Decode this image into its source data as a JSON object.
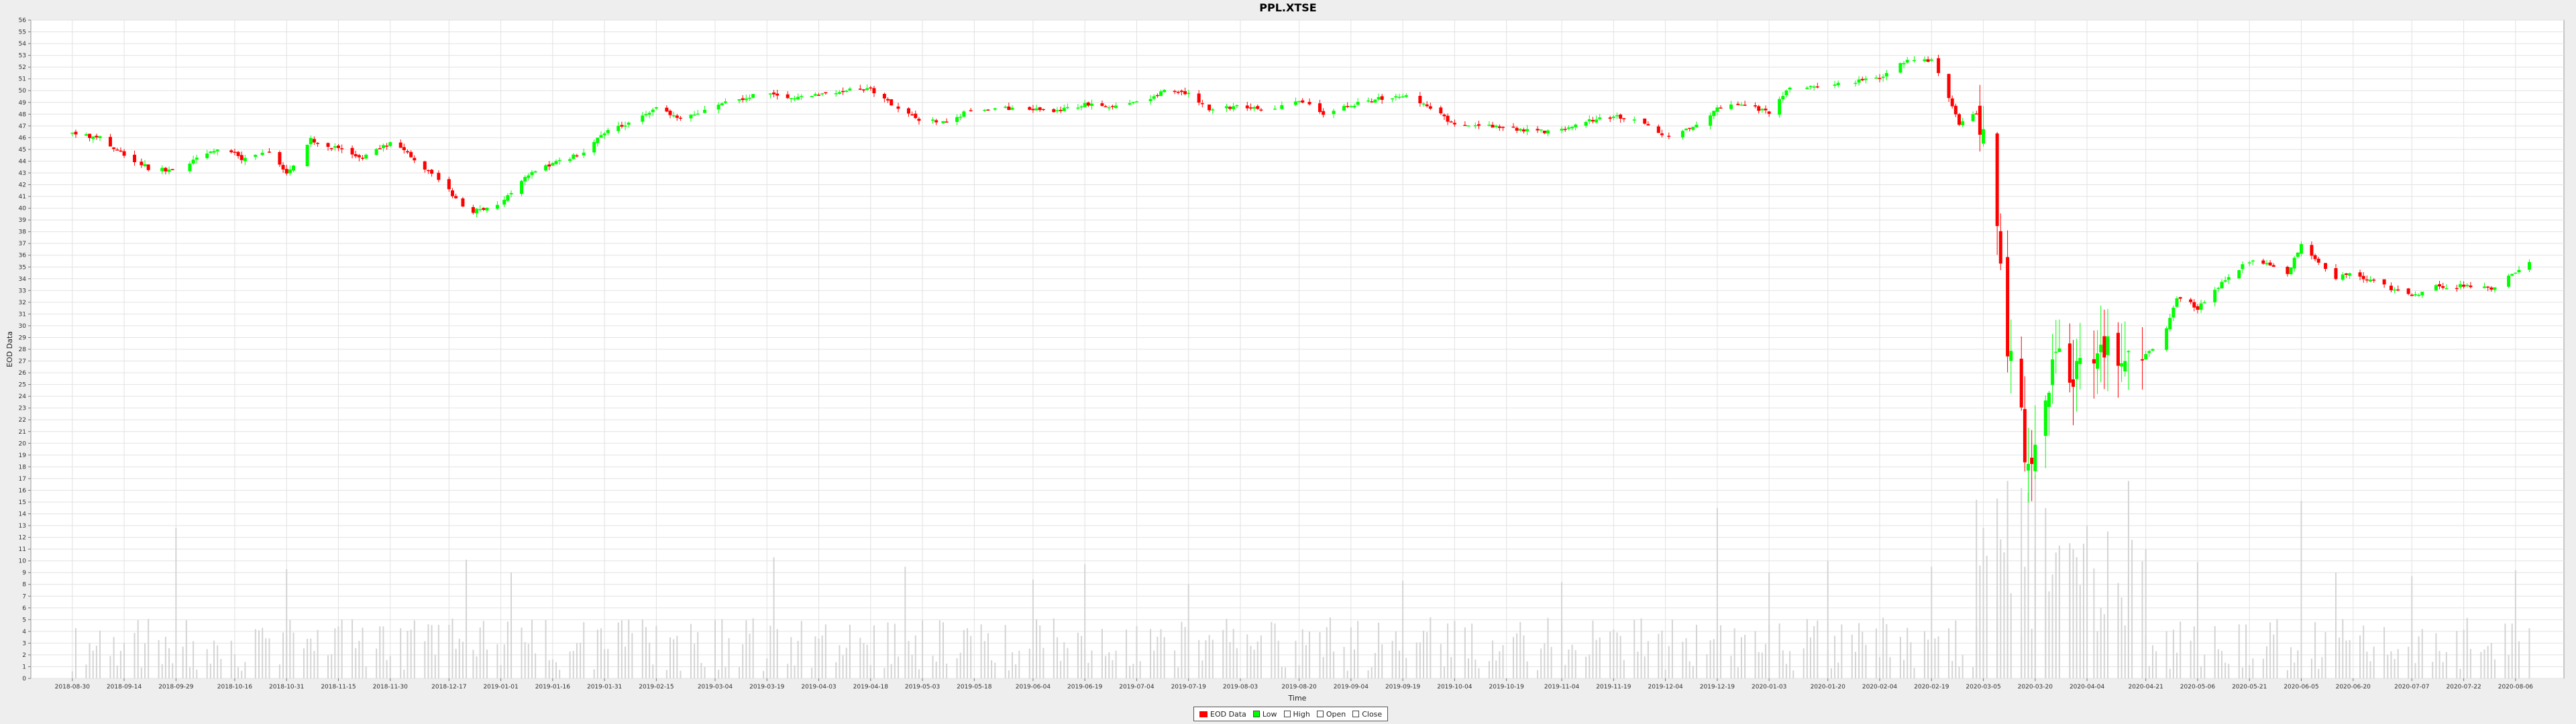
{
  "title": "PPL.XTSE",
  "chart_data": {
    "type": "candlestick",
    "title": "PPL.XTSE",
    "xlabel": "Time",
    "ylabel": "EOD Data",
    "ylim": [
      0,
      56
    ],
    "grid": true,
    "legend_placement": "bottom-center",
    "x_tick_labels": [
      "2018-08-30",
      "2018-09-14",
      "2018-09-29",
      "2018-10-16",
      "2018-10-31",
      "2018-11-15",
      "2018-11-30",
      "2018-12-17",
      "2019-01-01",
      "2019-01-16",
      "2019-01-31",
      "2019-02-15",
      "2019-03-04",
      "2019-03-19",
      "2019-04-03",
      "2019-04-18",
      "2019-05-03",
      "2019-05-18",
      "2019-06-04",
      "2019-06-19",
      "2019-07-04",
      "2019-07-19",
      "2019-08-03",
      "2019-08-20",
      "2019-09-04",
      "2019-09-19",
      "2019-10-04",
      "2019-10-19",
      "2019-11-04",
      "2019-11-19",
      "2019-12-04",
      "2019-12-19",
      "2020-01-03",
      "2020-01-20",
      "2020-02-04",
      "2020-02-19",
      "2020-03-05",
      "2020-03-20",
      "2020-04-04",
      "2020-04-21",
      "2020-05-06",
      "2020-05-21",
      "2020-06-05",
      "2020-06-20",
      "2020-07-07",
      "2020-07-22",
      "2020-08-06"
    ],
    "y_ticks": [
      0,
      1,
      2,
      3,
      4,
      5,
      6,
      7,
      8,
      9,
      10,
      11,
      12,
      13,
      14,
      15,
      16,
      17,
      18,
      19,
      20,
      21,
      22,
      23,
      24,
      25,
      26,
      27,
      28,
      29,
      30,
      31,
      32,
      33,
      34,
      35,
      36,
      37,
      38,
      39,
      40,
      41,
      42,
      43,
      44,
      45,
      46,
      47,
      48,
      49,
      50,
      51,
      52,
      53,
      54,
      55,
      56
    ],
    "close_anchors": [
      [
        "2018-08-30",
        46.3
      ],
      [
        "2018-09-07",
        46.0
      ],
      [
        "2018-09-14",
        44.6
      ],
      [
        "2018-09-21",
        43.4
      ],
      [
        "2018-09-29",
        43.2
      ],
      [
        "2018-10-06",
        44.5
      ],
      [
        "2018-10-13",
        45.3
      ],
      [
        "2018-10-18",
        44.2
      ],
      [
        "2018-10-26",
        44.9
      ],
      [
        "2018-10-31",
        43.0
      ],
      [
        "2018-11-07",
        45.8
      ],
      [
        "2018-11-15",
        45.0
      ],
      [
        "2018-11-22",
        44.3
      ],
      [
        "2018-11-30",
        45.6
      ],
      [
        "2018-12-07",
        44.2
      ],
      [
        "2018-12-17",
        41.5
      ],
      [
        "2018-12-22",
        39.6
      ],
      [
        "2019-01-01",
        40.4
      ],
      [
        "2019-01-08",
        42.8
      ],
      [
        "2019-01-16",
        43.8
      ],
      [
        "2019-01-24",
        44.6
      ],
      [
        "2019-01-31",
        46.5
      ],
      [
        "2019-02-08",
        47.3
      ],
      [
        "2019-02-15",
        48.5
      ],
      [
        "2019-02-22",
        47.6
      ],
      [
        "2019-03-04",
        48.8
      ],
      [
        "2019-03-11",
        49.3
      ],
      [
        "2019-03-19",
        49.8
      ],
      [
        "2019-03-26",
        49.2
      ],
      [
        "2019-04-03",
        49.7
      ],
      [
        "2019-04-11",
        50.0
      ],
      [
        "2019-04-18",
        50.1
      ],
      [
        "2019-04-26",
        48.4
      ],
      [
        "2019-05-03",
        47.4
      ],
      [
        "2019-05-10",
        47.5
      ],
      [
        "2019-05-18",
        48.4
      ],
      [
        "2019-05-26",
        48.5
      ],
      [
        "2019-06-04",
        48.4
      ],
      [
        "2019-06-12",
        48.3
      ],
      [
        "2019-06-19",
        48.8
      ],
      [
        "2019-06-26",
        48.6
      ],
      [
        "2019-07-04",
        49.0
      ],
      [
        "2019-07-12",
        49.9
      ],
      [
        "2019-07-19",
        49.7
      ],
      [
        "2019-07-26",
        48.3
      ],
      [
        "2019-08-03",
        48.7
      ],
      [
        "2019-08-12",
        48.3
      ],
      [
        "2019-08-20",
        49.2
      ],
      [
        "2019-08-27",
        48.0
      ],
      [
        "2019-09-04",
        48.8
      ],
      [
        "2019-09-12",
        49.3
      ],
      [
        "2019-09-19",
        49.6
      ],
      [
        "2019-09-26",
        48.7
      ],
      [
        "2019-10-04",
        47.1
      ],
      [
        "2019-10-12",
        47.0
      ],
      [
        "2019-10-19",
        46.8
      ],
      [
        "2019-10-27",
        46.5
      ],
      [
        "2019-11-04",
        46.6
      ],
      [
        "2019-11-12",
        47.4
      ],
      [
        "2019-11-19",
        47.8
      ],
      [
        "2019-11-27",
        47.4
      ],
      [
        "2019-12-04",
        46.1
      ],
      [
        "2019-12-12",
        47.0
      ],
      [
        "2019-12-19",
        48.4
      ],
      [
        "2019-12-26",
        48.9
      ],
      [
        "2020-01-03",
        48.1
      ],
      [
        "2020-01-08",
        50.1
      ],
      [
        "2020-01-20",
        50.4
      ],
      [
        "2020-01-27",
        50.8
      ],
      [
        "2020-02-04",
        51.0
      ],
      [
        "2020-02-12",
        52.6
      ],
      [
        "2020-02-19",
        52.6
      ],
      [
        "2020-02-22",
        51.0
      ],
      [
        "2020-02-27",
        47.2
      ],
      [
        "2020-03-03",
        48.2
      ],
      [
        "2020-03-05",
        46.4
      ],
      [
        "2020-03-09",
        38.0
      ],
      [
        "2020-03-12",
        28.5
      ],
      [
        "2020-03-16",
        22.0
      ],
      [
        "2020-03-18",
        17.0
      ],
      [
        "2020-03-20",
        20.5
      ],
      [
        "2020-03-23",
        24.0
      ],
      [
        "2020-03-26",
        27.8
      ],
      [
        "2020-03-30",
        25.5
      ],
      [
        "2020-04-04",
        27.0
      ],
      [
        "2020-04-10",
        28.3
      ],
      [
        "2020-04-16",
        27.0
      ],
      [
        "2020-04-21",
        27.5
      ],
      [
        "2020-04-26",
        29.0
      ],
      [
        "2020-04-30",
        32.5
      ],
      [
        "2020-05-06",
        31.5
      ],
      [
        "2020-05-11",
        33.0
      ],
      [
        "2020-05-16",
        34.5
      ],
      [
        "2020-05-21",
        35.5
      ],
      [
        "2020-05-27",
        35.3
      ],
      [
        "2020-06-01",
        34.5
      ],
      [
        "2020-06-05",
        37.0
      ],
      [
        "2020-06-10",
        35.5
      ],
      [
        "2020-06-15",
        34.0
      ],
      [
        "2020-06-20",
        34.5
      ],
      [
        "2020-06-28",
        33.5
      ],
      [
        "2020-07-07",
        32.5
      ],
      [
        "2020-07-14",
        33.3
      ],
      [
        "2020-07-22",
        33.4
      ],
      [
        "2020-07-30",
        33.2
      ],
      [
        "2020-08-06",
        34.5
      ],
      [
        "2020-08-10",
        35.6
      ]
    ],
    "volume_spikes": [
      [
        "2018-09-29",
        12.8
      ],
      [
        "2018-10-31",
        9.3
      ],
      [
        "2018-12-22",
        10.1
      ],
      [
        "2019-01-04",
        9.0
      ],
      [
        "2019-03-21",
        10.3
      ],
      [
        "2019-04-28",
        9.5
      ],
      [
        "2019-06-04",
        8.4
      ],
      [
        "2019-06-19",
        9.7
      ],
      [
        "2019-07-19",
        8.0
      ],
      [
        "2019-09-19",
        8.3
      ],
      [
        "2019-11-04",
        8.2
      ],
      [
        "2019-12-19",
        14.5
      ],
      [
        "2020-01-03",
        9.0
      ],
      [
        "2020-01-20",
        10.0
      ],
      [
        "2020-02-19",
        9.5
      ],
      [
        "2020-03-03",
        15.2
      ],
      [
        "2020-03-05",
        12.8
      ],
      [
        "2020-03-09",
        15.3
      ],
      [
        "2020-03-12",
        16.8
      ],
      [
        "2020-03-16",
        16.2
      ],
      [
        "2020-03-18",
        15.8
      ],
      [
        "2020-03-20",
        17.2
      ],
      [
        "2020-03-23",
        14.5
      ],
      [
        "2020-03-30",
        11.5
      ],
      [
        "2020-04-04",
        13.0
      ],
      [
        "2020-04-10",
        12.5
      ],
      [
        "2020-04-16",
        16.8
      ],
      [
        "2020-04-21",
        11.0
      ],
      [
        "2020-05-06",
        9.9
      ],
      [
        "2020-06-05",
        15.1
      ],
      [
        "2020-06-15",
        9.0
      ],
      [
        "2020-07-07",
        8.7
      ],
      [
        "2020-08-06",
        9.2
      ]
    ],
    "colors": {
      "up": "#00ff00",
      "down": "#ff0000",
      "volume": "#d4d4d4",
      "plot_bg": "#ffffff",
      "grid": "#e2e2e2"
    },
    "legend": [
      {
        "label": "EOD Data",
        "marker": "#ff0000"
      },
      {
        "label": "Low",
        "marker": "#00ff00"
      },
      {
        "label": "High",
        "marker": "#ffffff"
      },
      {
        "label": "Open",
        "marker": "#ffffff"
      },
      {
        "label": "Close",
        "marker": "#ffffff"
      }
    ]
  }
}
